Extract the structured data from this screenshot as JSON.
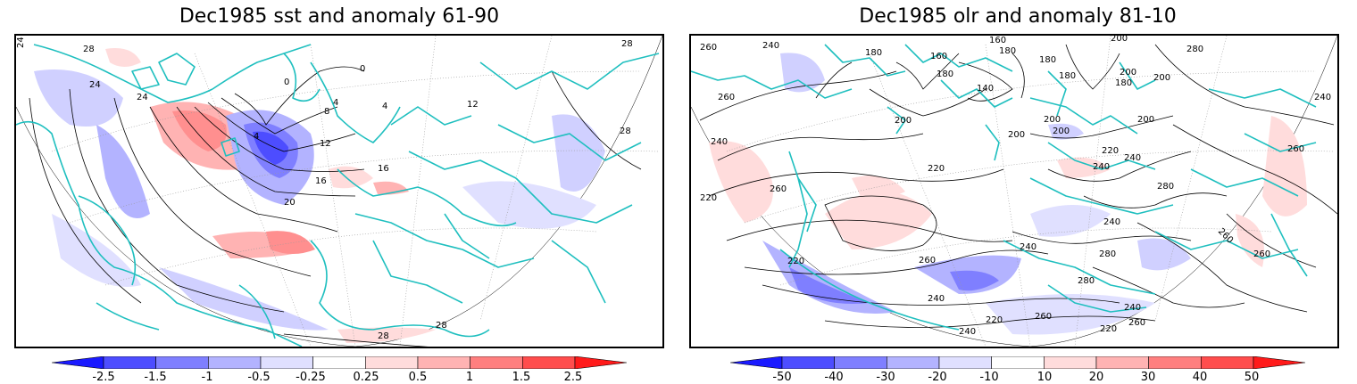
{
  "left_panel": {
    "title": "Dec1985 sst and anomaly 61-90",
    "contour_labels": [
      "24",
      "28",
      "24",
      "24",
      "20",
      "16",
      "16",
      "12",
      "8",
      "4",
      "4",
      "0",
      "0",
      "4",
      "12",
      "28",
      "28",
      "28",
      "28"
    ],
    "colorbar": {
      "ticks": [
        "-2.5",
        "-1.5",
        "-1",
        "-0.5",
        "-0.25",
        "0.25",
        "0.5",
        "1",
        "1.5",
        "2.5"
      ],
      "colors": [
        "#1a1aff",
        "#4d4dff",
        "#7f7fff",
        "#b3b3ff",
        "#e0e0ff",
        "#ffffff",
        "#ffdcdc",
        "#ffb3b3",
        "#ff7f7f",
        "#ff4d4d",
        "#ff1a1a"
      ]
    }
  },
  "right_panel": {
    "title": "Dec1985 olr and anomaly 81-10",
    "contour_labels": [
      "260",
      "240",
      "180",
      "160",
      "160",
      "180",
      "200",
      "280",
      "200",
      "180",
      "180",
      "140",
      "180",
      "260",
      "180",
      "200",
      "200",
      "200",
      "240",
      "200",
      "200",
      "200",
      "220",
      "240",
      "260",
      "240",
      "260",
      "220",
      "220",
      "240",
      "280",
      "260",
      "240",
      "240",
      "280",
      "280",
      "260",
      "220",
      "260",
      "240",
      "220",
      "240",
      "260",
      "220",
      "240",
      "260"
    ],
    "colorbar": {
      "ticks": [
        "-50",
        "-40",
        "-30",
        "-20",
        "-10",
        "10",
        "20",
        "30",
        "40",
        "50"
      ],
      "colors": [
        "#1a1aff",
        "#4d4dff",
        "#7f7fff",
        "#b3b3ff",
        "#e0e0ff",
        "#ffffff",
        "#ffdcdc",
        "#ffb3b3",
        "#ff7f7f",
        "#ff4d4d",
        "#ff1a1a"
      ]
    }
  },
  "colors": {
    "coastline": "#1fbfbf",
    "contour": "#000000",
    "graticule": "#9a9a9a"
  }
}
